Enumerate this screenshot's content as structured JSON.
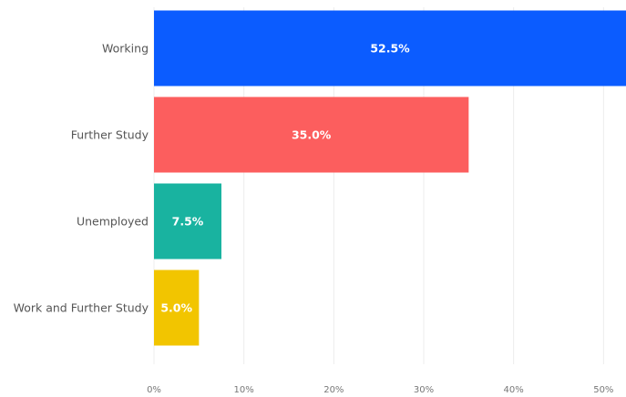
{
  "chart_data": {
    "type": "bar",
    "orientation": "horizontal",
    "categories": [
      "Working",
      "Further Study",
      "Unemployed",
      "Work and Further Study"
    ],
    "values": [
      52.5,
      35.0,
      7.5,
      5.0
    ],
    "data_labels": [
      "52.5%",
      "35.0%",
      "7.5%",
      "5.0%"
    ],
    "colors": [
      "#0b5cff",
      "#fc5e5e",
      "#19b3a0",
      "#f2c500"
    ],
    "xlim": [
      0,
      52.5
    ],
    "x_ticks": [
      0,
      10,
      20,
      30,
      40,
      50
    ],
    "x_tick_labels": [
      "0%",
      "10%",
      "20%",
      "30%",
      "40%",
      "50%"
    ],
    "grid": true,
    "legend": "none",
    "title": "",
    "xlabel": "",
    "ylabel": ""
  }
}
